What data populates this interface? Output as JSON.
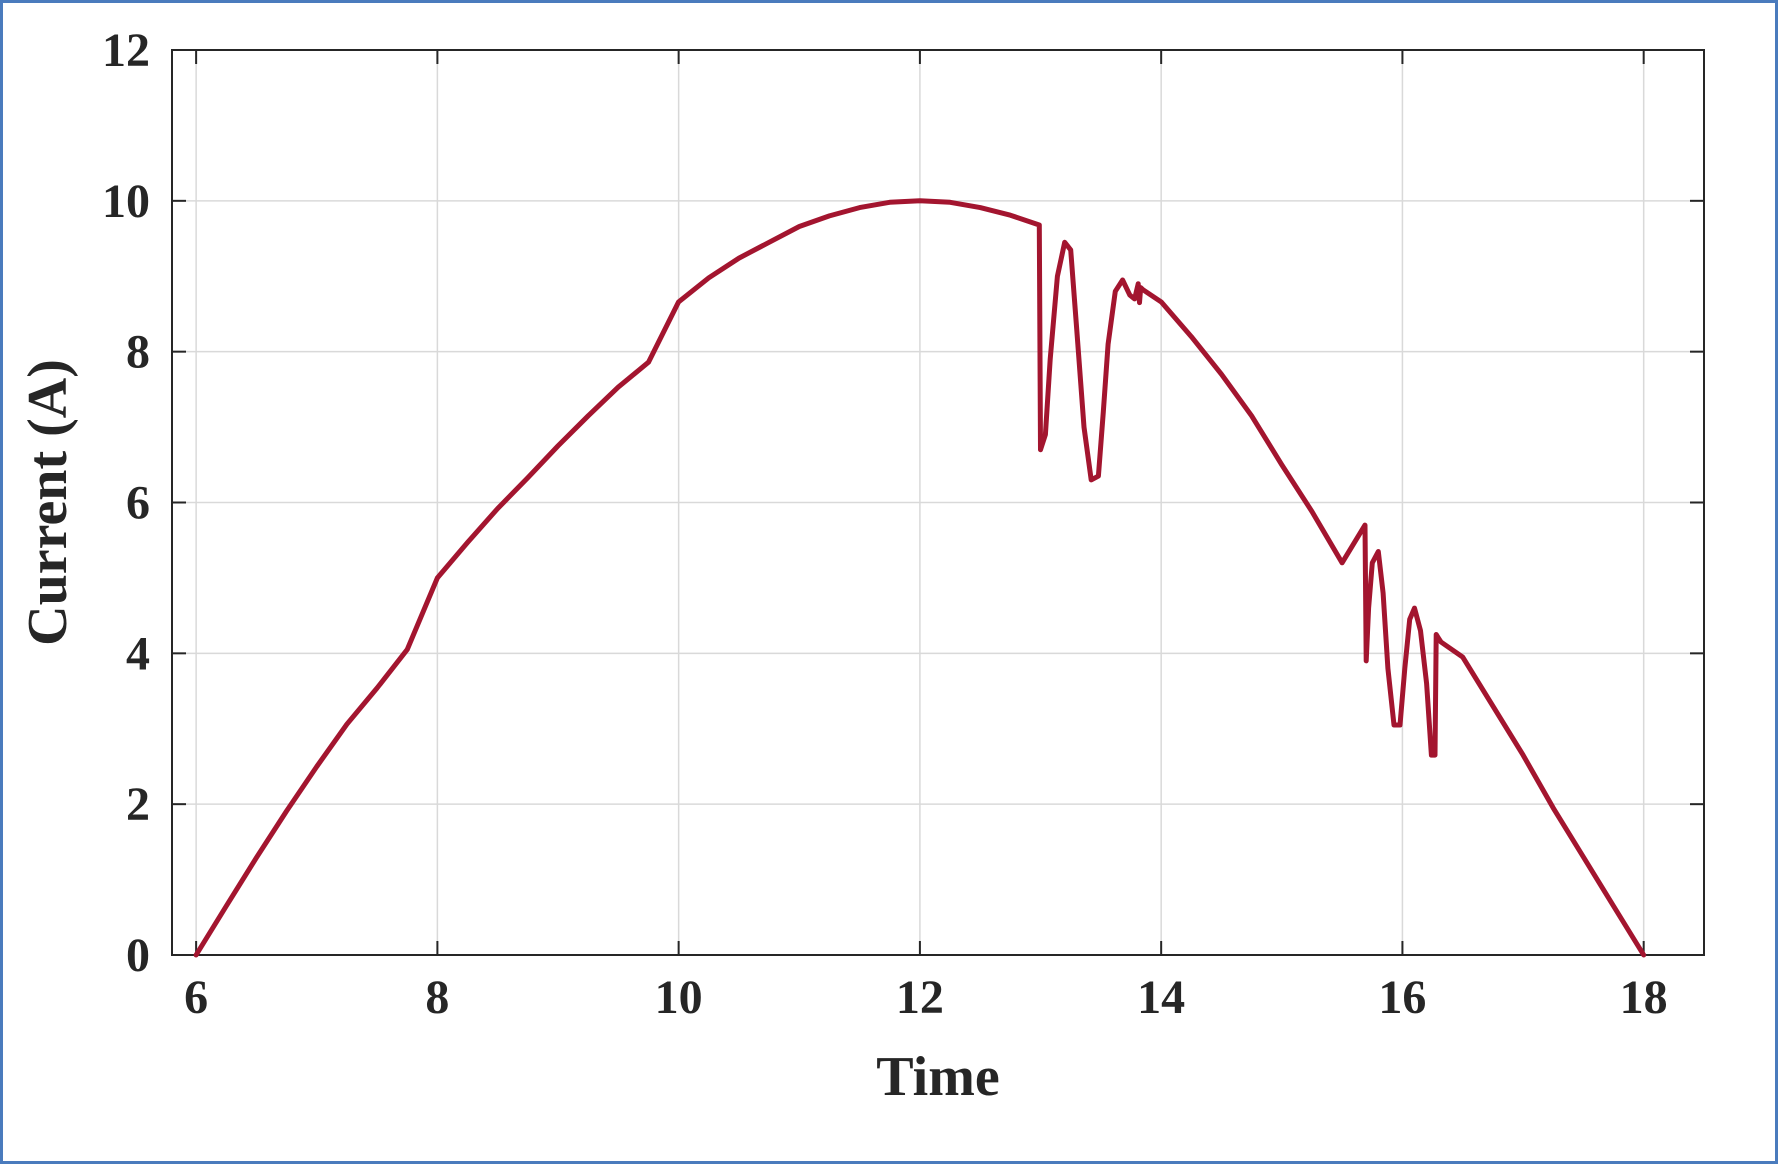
{
  "chart_data": {
    "type": "line",
    "title": "",
    "xlabel": "Time",
    "ylabel": "Current (A)",
    "xlim": [
      5.8,
      18.5
    ],
    "ylim": [
      0,
      12
    ],
    "xticks": [
      6,
      8,
      10,
      12,
      14,
      16,
      18
    ],
    "yticks": [
      0,
      2,
      4,
      6,
      8,
      10,
      12
    ],
    "grid": true,
    "legend": "none",
    "line_color": "#a3152f",
    "series": [
      {
        "x": [
          6.0,
          6.25,
          6.5,
          6.75,
          7.0,
          7.25,
          7.5,
          7.75,
          8.0,
          8.25,
          8.5,
          8.75,
          9.0,
          9.25,
          9.5,
          9.75,
          10.0,
          10.25,
          10.5,
          10.75,
          11.0,
          11.25,
          11.5,
          11.75,
          12.0,
          12.25,
          12.5,
          12.75,
          12.99,
          13.0,
          13.04,
          13.08,
          13.14,
          13.2,
          13.25,
          13.3,
          13.36,
          13.42,
          13.48,
          13.52,
          13.56,
          13.62,
          13.68,
          13.74,
          13.78,
          13.81,
          13.82,
          13.83,
          13.85,
          14.0,
          14.25,
          14.5,
          14.75,
          15.0,
          15.25,
          15.5,
          15.69,
          15.7,
          15.72,
          15.75,
          15.8,
          15.84,
          15.88,
          15.93,
          15.98,
          16.02,
          16.06,
          16.1,
          16.15,
          16.2,
          16.24,
          16.27,
          16.28,
          16.3,
          16.32,
          16.5,
          16.75,
          17.0,
          17.25,
          17.5,
          17.75,
          18.0
        ],
        "y": [
          0.0,
          0.65,
          1.29,
          1.91,
          2.5,
          3.06,
          3.54,
          4.05,
          5.0,
          5.47,
          5.92,
          6.33,
          6.75,
          7.15,
          7.53,
          7.86,
          8.66,
          8.98,
          9.24,
          9.45,
          9.66,
          9.8,
          9.91,
          9.98,
          10.0,
          9.98,
          9.91,
          9.81,
          9.68,
          6.7,
          6.9,
          7.9,
          9.0,
          9.45,
          9.35,
          8.3,
          7.0,
          6.3,
          6.35,
          7.2,
          8.1,
          8.8,
          8.95,
          8.75,
          8.7,
          8.9,
          8.65,
          8.85,
          8.82,
          8.66,
          8.2,
          7.7,
          7.15,
          6.5,
          5.88,
          5.2,
          5.7,
          3.9,
          4.6,
          5.2,
          5.35,
          4.8,
          3.8,
          3.05,
          3.05,
          3.8,
          4.45,
          4.6,
          4.3,
          3.6,
          2.65,
          2.65,
          4.25,
          4.2,
          4.15,
          3.95,
          3.3,
          2.65,
          1.95,
          1.3,
          0.65,
          0.0
        ]
      }
    ]
  }
}
